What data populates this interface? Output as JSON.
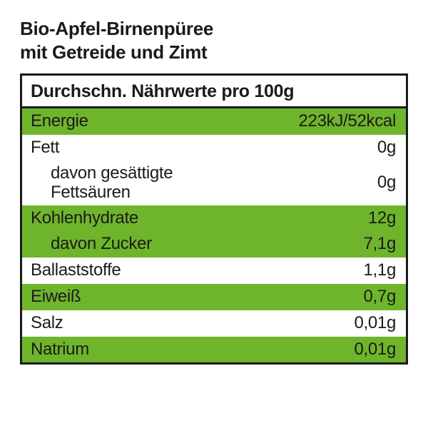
{
  "title_line1": "Bio-Apfel-Birnenpüree",
  "title_line2": "mit Getreide und Zimt",
  "header": "Durchschn. Nährwerte pro 100g",
  "colors": {
    "green": "#6fb52c",
    "white": "#ffffff",
    "text": "#1a1a1a",
    "border": "#1a1a1a"
  },
  "rows": [
    {
      "label": "Energie",
      "value": "223kJ/52kcal",
      "bg": "#6fb52c",
      "sub": false
    },
    {
      "label": "Fett",
      "value": "0g",
      "bg": "#ffffff",
      "sub": false
    },
    {
      "label": "davon gesättigte\nFettsäuren",
      "value": "0g",
      "bg": "#ffffff",
      "sub": true,
      "multiline": true
    },
    {
      "label": "Kohlenhydrate",
      "value": "12g",
      "bg": "#6fb52c",
      "sub": false
    },
    {
      "label": "davon Zucker",
      "value": "7,1g",
      "bg": "#6fb52c",
      "sub": true
    },
    {
      "label": "Ballaststoffe",
      "value": "1,1g",
      "bg": "#ffffff",
      "sub": false
    },
    {
      "label": "Eiweiß",
      "value": "0,7g",
      "bg": "#6fb52c",
      "sub": false
    },
    {
      "label": "Salz",
      "value": "0,01g",
      "bg": "#ffffff",
      "sub": false
    },
    {
      "label": "Natrium",
      "value": "0,01g",
      "bg": "#6fb52c",
      "sub": false
    }
  ]
}
